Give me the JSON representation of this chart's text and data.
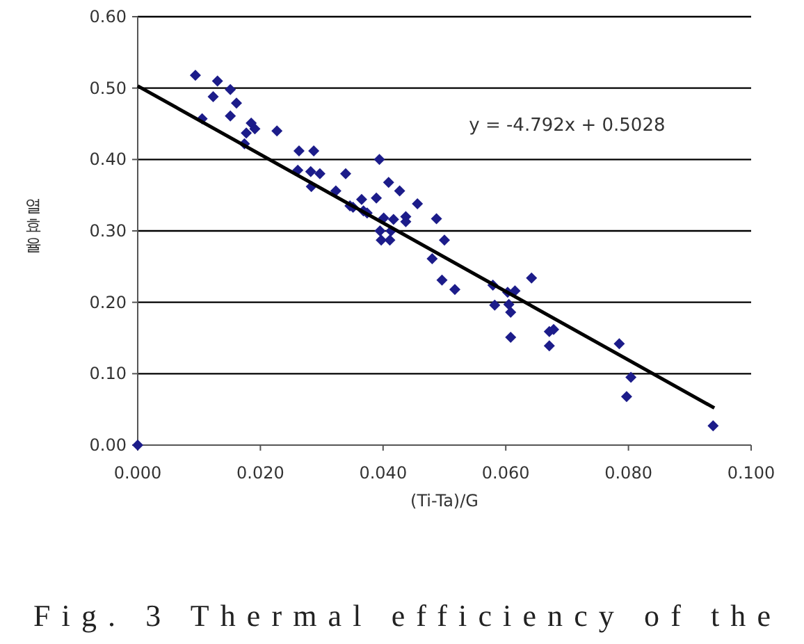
{
  "chart_data": {
    "type": "scatter",
    "xlabel": "(Ti-Ta)/G",
    "ylabel": "열효율",
    "xlim": [
      0,
      0.1
    ],
    "ylim": [
      0,
      0.6
    ],
    "xticks": [
      {
        "value": 0,
        "label": "0.000"
      },
      {
        "value": 0.02,
        "label": "0.020"
      },
      {
        "value": 0.04,
        "label": "0.040"
      },
      {
        "value": 0.06,
        "label": "0.060"
      },
      {
        "value": 0.08,
        "label": "0.080"
      },
      {
        "value": 0.1,
        "label": "0.100"
      }
    ],
    "yticks": [
      {
        "value": 0,
        "label": "0.00"
      },
      {
        "value": 0.1,
        "label": "0.10"
      },
      {
        "value": 0.2,
        "label": "0.20"
      },
      {
        "value": 0.3,
        "label": "0.30"
      },
      {
        "value": 0.4,
        "label": "0.40"
      },
      {
        "value": 0.5,
        "label": "0.50"
      },
      {
        "value": 0.6,
        "label": "0.60"
      }
    ],
    "grid": "y",
    "series": [
      {
        "marker": "diamond",
        "color": "#1c1c8a",
        "x": [
          0,
          0.0094,
          0.013,
          0.0123,
          0.0151,
          0.0161,
          0.0151,
          0.0105,
          0.0185,
          0.0191,
          0.0177,
          0.0174,
          0.0227,
          0.0263,
          0.0287,
          0.0261,
          0.0282,
          0.0297,
          0.0283,
          0.0339,
          0.0394,
          0.0409,
          0.0427,
          0.0456,
          0.0365,
          0.0389,
          0.0346,
          0.0351,
          0.0368,
          0.0374,
          0.0323,
          0.0401,
          0.0417,
          0.0437,
          0.0437,
          0.0395,
          0.0413,
          0.0397,
          0.0411,
          0.0487,
          0.05,
          0.048,
          0.0496,
          0.0517,
          0.0579,
          0.0603,
          0.0615,
          0.0642,
          0.0582,
          0.0605,
          0.0608,
          0.0608,
          0.0671,
          0.0678,
          0.0671,
          0.0785,
          0.0804,
          0.0797,
          0.0938
        ],
        "values": [
          0,
          0.518,
          0.51,
          0.488,
          0.498,
          0.479,
          0.461,
          0.457,
          0.451,
          0.443,
          0.437,
          0.422,
          0.44,
          0.412,
          0.412,
          0.385,
          0.383,
          0.38,
          0.362,
          0.38,
          0.4,
          0.368,
          0.356,
          0.338,
          0.344,
          0.346,
          0.335,
          0.333,
          0.328,
          0.325,
          0.356,
          0.318,
          0.316,
          0.32,
          0.313,
          0.3,
          0.3,
          0.287,
          0.287,
          0.317,
          0.287,
          0.261,
          0.231,
          0.218,
          0.224,
          0.214,
          0.216,
          0.234,
          0.196,
          0.197,
          0.186,
          0.151,
          0.159,
          0.162,
          0.139,
          0.142,
          0.095,
          0.068,
          0.027
        ]
      },
      {
        "type": "line",
        "marker": "none",
        "color": "#000000",
        "x": [
          0,
          0.094
        ],
        "values": [
          0.503,
          0.052
        ]
      }
    ],
    "annotations": [
      "y = -4.792x + 0.5028",
      "Fig. 3 Thermal efficiency of the"
    ]
  }
}
